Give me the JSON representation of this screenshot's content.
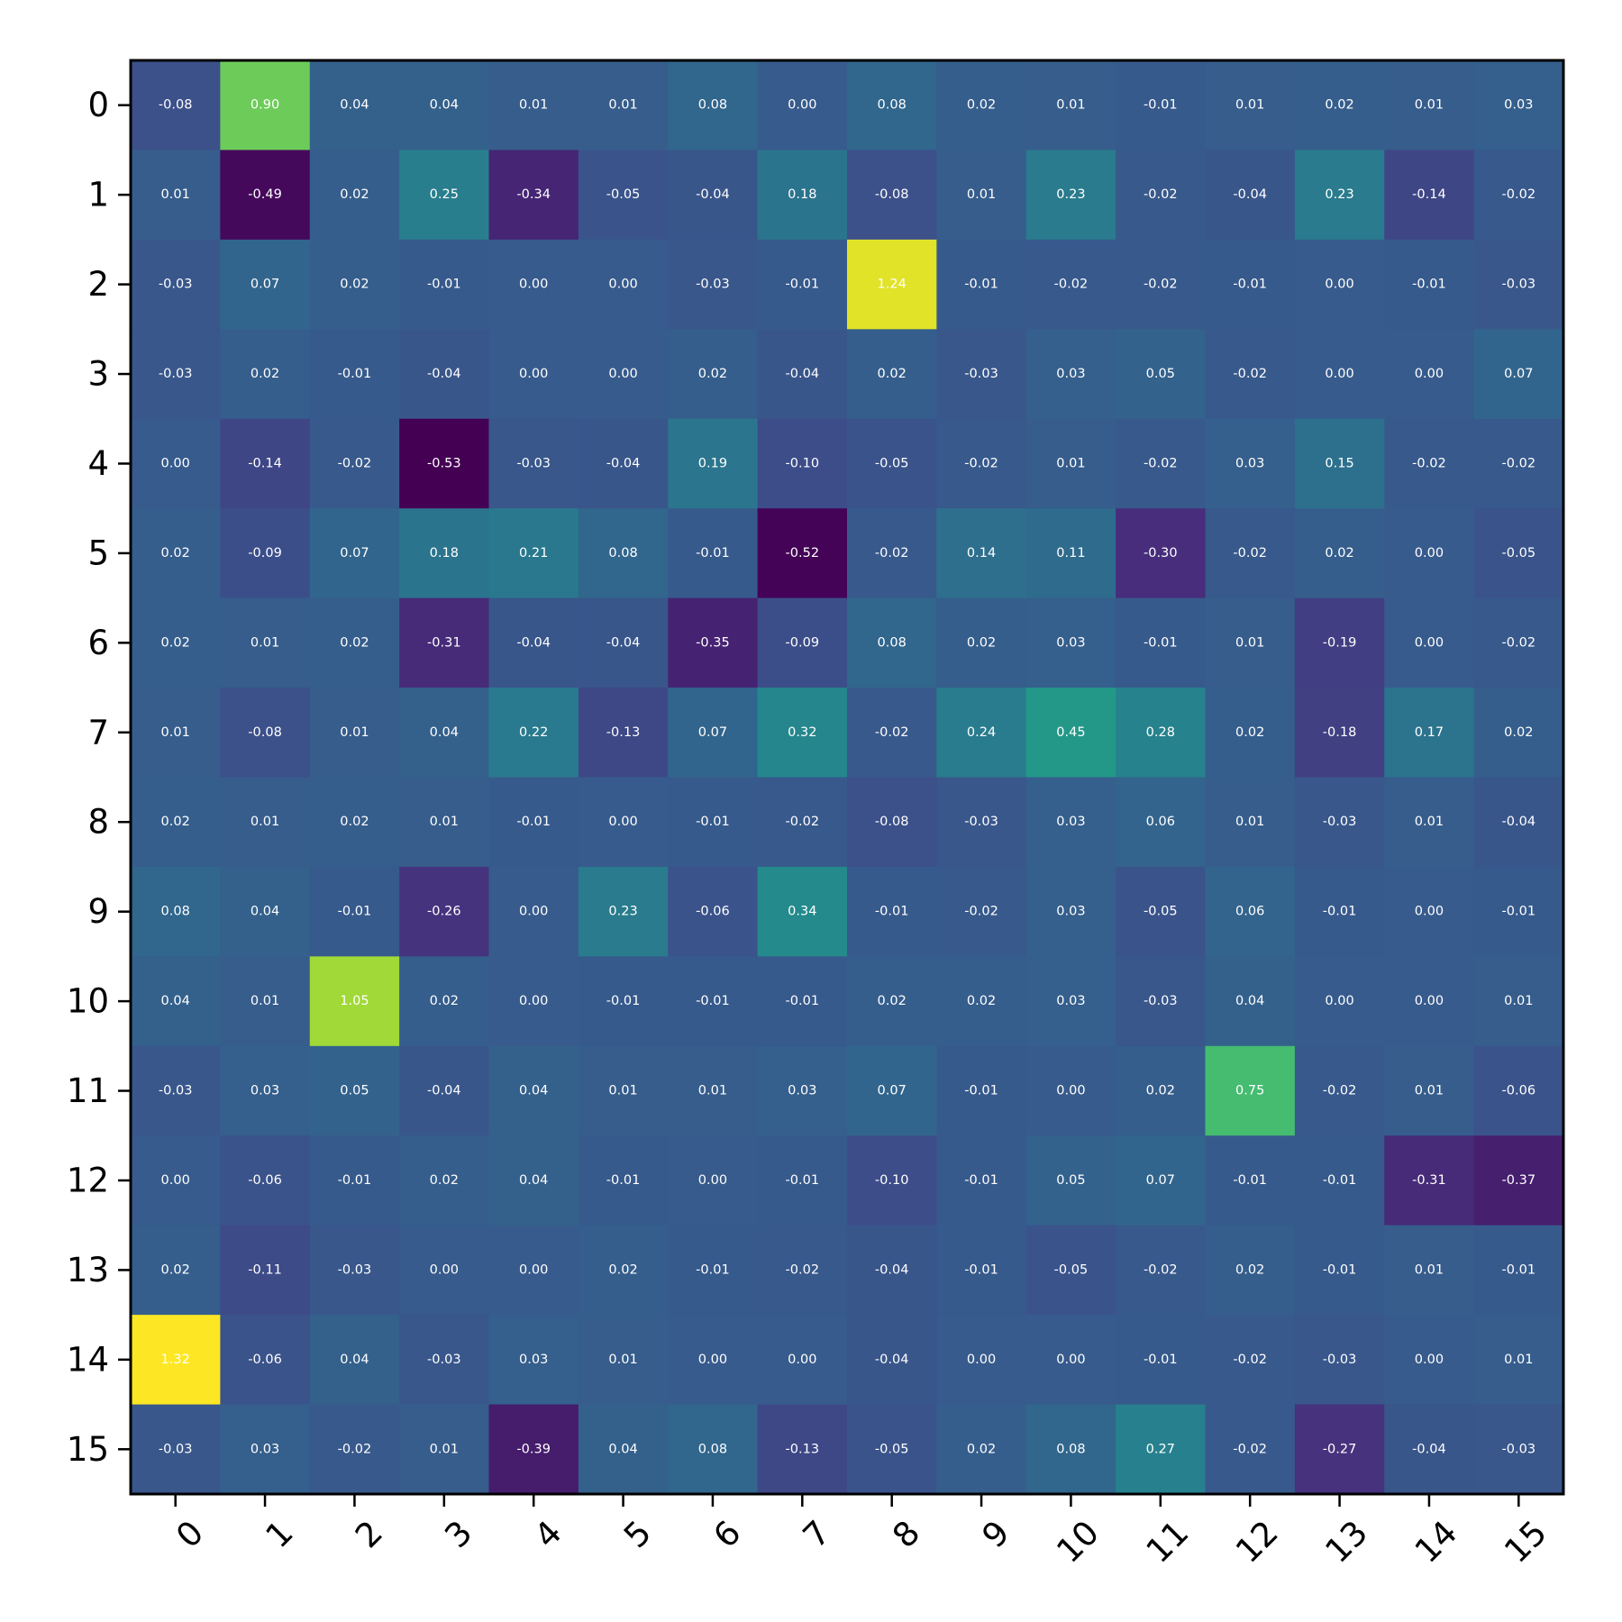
{
  "chart_data": {
    "type": "heatmap",
    "title": "",
    "xlabel": "",
    "ylabel": "",
    "x_tick_labels": [
      "0",
      "1",
      "2",
      "3",
      "4",
      "5",
      "6",
      "7",
      "8",
      "9",
      "10",
      "11",
      "12",
      "13",
      "14",
      "15"
    ],
    "y_tick_labels": [
      "0",
      "1",
      "2",
      "3",
      "4",
      "5",
      "6",
      "7",
      "8",
      "9",
      "10",
      "11",
      "12",
      "13",
      "14",
      "15"
    ],
    "colormap": "viridis",
    "vmin": -0.53,
    "vmax": 1.32,
    "grid": false,
    "values": [
      [
        -0.08,
        0.9,
        0.04,
        0.04,
        0.01,
        0.01,
        0.08,
        0.0,
        0.08,
        0.02,
        0.01,
        -0.01,
        0.01,
        0.02,
        0.01,
        0.03
      ],
      [
        0.01,
        -0.49,
        0.02,
        0.25,
        -0.34,
        -0.05,
        -0.04,
        0.18,
        -0.08,
        0.01,
        0.23,
        -0.02,
        -0.04,
        0.23,
        -0.14,
        -0.02
      ],
      [
        -0.03,
        0.07,
        0.02,
        -0.01,
        -0.0,
        0.0,
        -0.03,
        -0.01,
        1.24,
        -0.01,
        -0.02,
        -0.02,
        -0.01,
        -0.0,
        -0.01,
        -0.03
      ],
      [
        -0.03,
        0.02,
        -0.01,
        -0.04,
        -0.0,
        0.0,
        0.02,
        -0.04,
        0.02,
        -0.03,
        0.03,
        0.05,
        -0.02,
        0.0,
        0.0,
        0.07
      ],
      [
        -0.0,
        -0.14,
        -0.02,
        -0.53,
        -0.03,
        -0.04,
        0.19,
        -0.1,
        -0.05,
        -0.02,
        0.01,
        -0.02,
        0.03,
        0.15,
        -0.02,
        -0.02
      ],
      [
        0.02,
        -0.09,
        0.07,
        0.18,
        0.21,
        0.08,
        -0.01,
        -0.52,
        -0.02,
        0.14,
        0.11,
        -0.3,
        -0.02,
        0.02,
        0.0,
        -0.05
      ],
      [
        0.02,
        0.01,
        0.02,
        -0.31,
        -0.04,
        -0.04,
        -0.35,
        -0.09,
        0.08,
        0.02,
        0.03,
        -0.01,
        0.01,
        -0.19,
        -0.0,
        -0.02
      ],
      [
        0.01,
        -0.08,
        0.01,
        0.04,
        0.22,
        -0.13,
        0.07,
        0.32,
        -0.02,
        0.24,
        0.45,
        0.28,
        0.02,
        -0.18,
        0.17,
        0.02
      ],
      [
        0.02,
        0.01,
        0.02,
        0.01,
        -0.01,
        0.0,
        -0.01,
        -0.02,
        -0.08,
        -0.03,
        0.03,
        0.06,
        0.01,
        -0.03,
        0.01,
        -0.04
      ],
      [
        0.08,
        0.04,
        -0.01,
        -0.26,
        -0.0,
        0.23,
        -0.06,
        0.34,
        -0.01,
        -0.02,
        0.03,
        -0.05,
        0.06,
        -0.01,
        -0.0,
        -0.01
      ],
      [
        0.04,
        0.01,
        1.05,
        0.02,
        -0.0,
        -0.01,
        -0.01,
        -0.01,
        0.02,
        0.02,
        0.03,
        -0.03,
        0.04,
        0.0,
        -0.0,
        0.01
      ],
      [
        -0.03,
        0.03,
        0.05,
        -0.04,
        0.04,
        0.01,
        0.01,
        0.03,
        0.07,
        -0.01,
        0.0,
        0.02,
        0.75,
        -0.02,
        0.01,
        -0.06
      ],
      [
        -0.0,
        -0.06,
        -0.01,
        0.02,
        0.04,
        -0.01,
        -0.0,
        -0.01,
        -0.1,
        -0.01,
        0.05,
        0.07,
        -0.01,
        -0.01,
        -0.31,
        -0.37
      ],
      [
        0.02,
        -0.11,
        -0.03,
        0.0,
        0.0,
        0.02,
        -0.01,
        -0.02,
        -0.04,
        -0.01,
        -0.05,
        -0.02,
        0.02,
        -0.01,
        0.01,
        -0.01
      ],
      [
        1.32,
        -0.06,
        0.04,
        -0.03,
        0.03,
        0.01,
        -0.0,
        0.0,
        -0.04,
        0.0,
        0.0,
        -0.01,
        -0.02,
        -0.03,
        -0.0,
        0.01
      ],
      [
        -0.03,
        0.03,
        -0.02,
        0.01,
        -0.39,
        0.04,
        0.08,
        -0.13,
        -0.05,
        0.02,
        0.08,
        0.27,
        -0.02,
        -0.27,
        -0.04,
        -0.03
      ]
    ]
  }
}
